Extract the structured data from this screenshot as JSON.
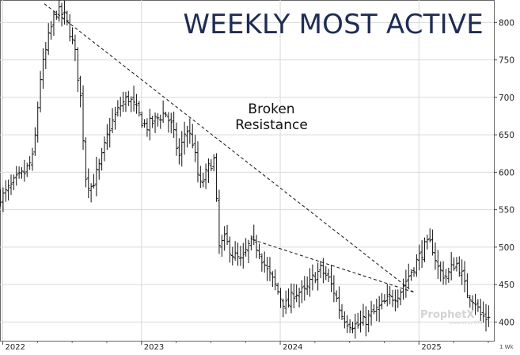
{
  "chart_data": {
    "type": "ohlc",
    "title": "WEEKLY MOST ACTIVE",
    "annotation": [
      "Broken",
      "Resistance"
    ],
    "watermark": {
      "brand": "ProphetX",
      "sub": "powered by DTN"
    },
    "period_label": "1 Wk",
    "y_axis": {
      "position": "right",
      "ylim": [
        375,
        830
      ],
      "ticks": [
        400,
        450,
        500,
        550,
        600,
        650,
        700,
        750,
        800
      ]
    },
    "x_axis": {
      "xlim": [
        2021.98,
        2025.54
      ],
      "ticks": [
        {
          "label": "2022",
          "x": 2022.0
        },
        {
          "label": "2023",
          "x": 2023.0
        },
        {
          "label": "2024",
          "x": 2024.0
        },
        {
          "label": "2025",
          "x": 2025.0
        }
      ]
    },
    "grid": true,
    "colors": {
      "title": "#1f2c52",
      "bars": "#111111",
      "grid": "#d9d9d9",
      "trendline": "#111111"
    },
    "trendlines": [
      {
        "style": "dashed",
        "from": {
          "x": 2022.3,
          "y": 825
        },
        "to": {
          "x": 2024.96,
          "y": 440
        }
      },
      {
        "style": "dashed",
        "from": {
          "x": 2023.8,
          "y": 510
        },
        "to": {
          "x": 2024.96,
          "y": 440
        }
      }
    ],
    "series": [
      {
        "anchors": [
          [
            2022.0,
            568
          ],
          [
            2022.1,
            590
          ],
          [
            2022.16,
            600
          ],
          [
            2022.22,
            620
          ],
          [
            2022.27,
            725
          ],
          [
            2022.33,
            780
          ],
          [
            2022.38,
            815
          ],
          [
            2022.44,
            810
          ],
          [
            2022.48,
            790
          ],
          [
            2022.52,
            760
          ],
          [
            2022.56,
            700
          ],
          [
            2022.6,
            590
          ],
          [
            2022.64,
            580
          ],
          [
            2022.7,
            610
          ],
          [
            2022.77,
            660
          ],
          [
            2022.85,
            690
          ],
          [
            2022.91,
            700
          ],
          [
            2022.97,
            680
          ],
          [
            2023.03,
            660
          ],
          [
            2023.1,
            670
          ],
          [
            2023.17,
            680
          ],
          [
            2023.22,
            660
          ],
          [
            2023.27,
            620
          ],
          [
            2023.32,
            660
          ],
          [
            2023.37,
            640
          ],
          [
            2023.42,
            580
          ],
          [
            2023.47,
            600
          ],
          [
            2023.52,
            620
          ],
          [
            2023.56,
            500
          ],
          [
            2023.6,
            510
          ],
          [
            2023.66,
            490
          ],
          [
            2023.72,
            480
          ],
          [
            2023.78,
            505
          ],
          [
            2023.84,
            500
          ],
          [
            2023.9,
            470
          ],
          [
            2023.96,
            450
          ],
          [
            2024.01,
            430
          ],
          [
            2024.05,
            420
          ],
          [
            2024.1,
            440
          ],
          [
            2024.18,
            440
          ],
          [
            2024.24,
            460
          ],
          [
            2024.29,
            470
          ],
          [
            2024.34,
            460
          ],
          [
            2024.39,
            440
          ],
          [
            2024.44,
            410
          ],
          [
            2024.49,
            400
          ],
          [
            2024.55,
            395
          ],
          [
            2024.6,
            400
          ],
          [
            2024.66,
            410
          ],
          [
            2024.72,
            420
          ],
          [
            2024.78,
            430
          ],
          [
            2024.86,
            440
          ],
          [
            2024.92,
            460
          ],
          [
            2024.98,
            480
          ],
          [
            2025.04,
            500
          ],
          [
            2025.09,
            505
          ],
          [
            2025.14,
            470
          ],
          [
            2025.2,
            460
          ],
          [
            2025.26,
            480
          ],
          [
            2025.3,
            470
          ],
          [
            2025.34,
            440
          ],
          [
            2025.4,
            430
          ],
          [
            2025.44,
            410
          ],
          [
            2025.48,
            405
          ],
          [
            2025.52,
            415
          ]
        ]
      }
    ]
  }
}
